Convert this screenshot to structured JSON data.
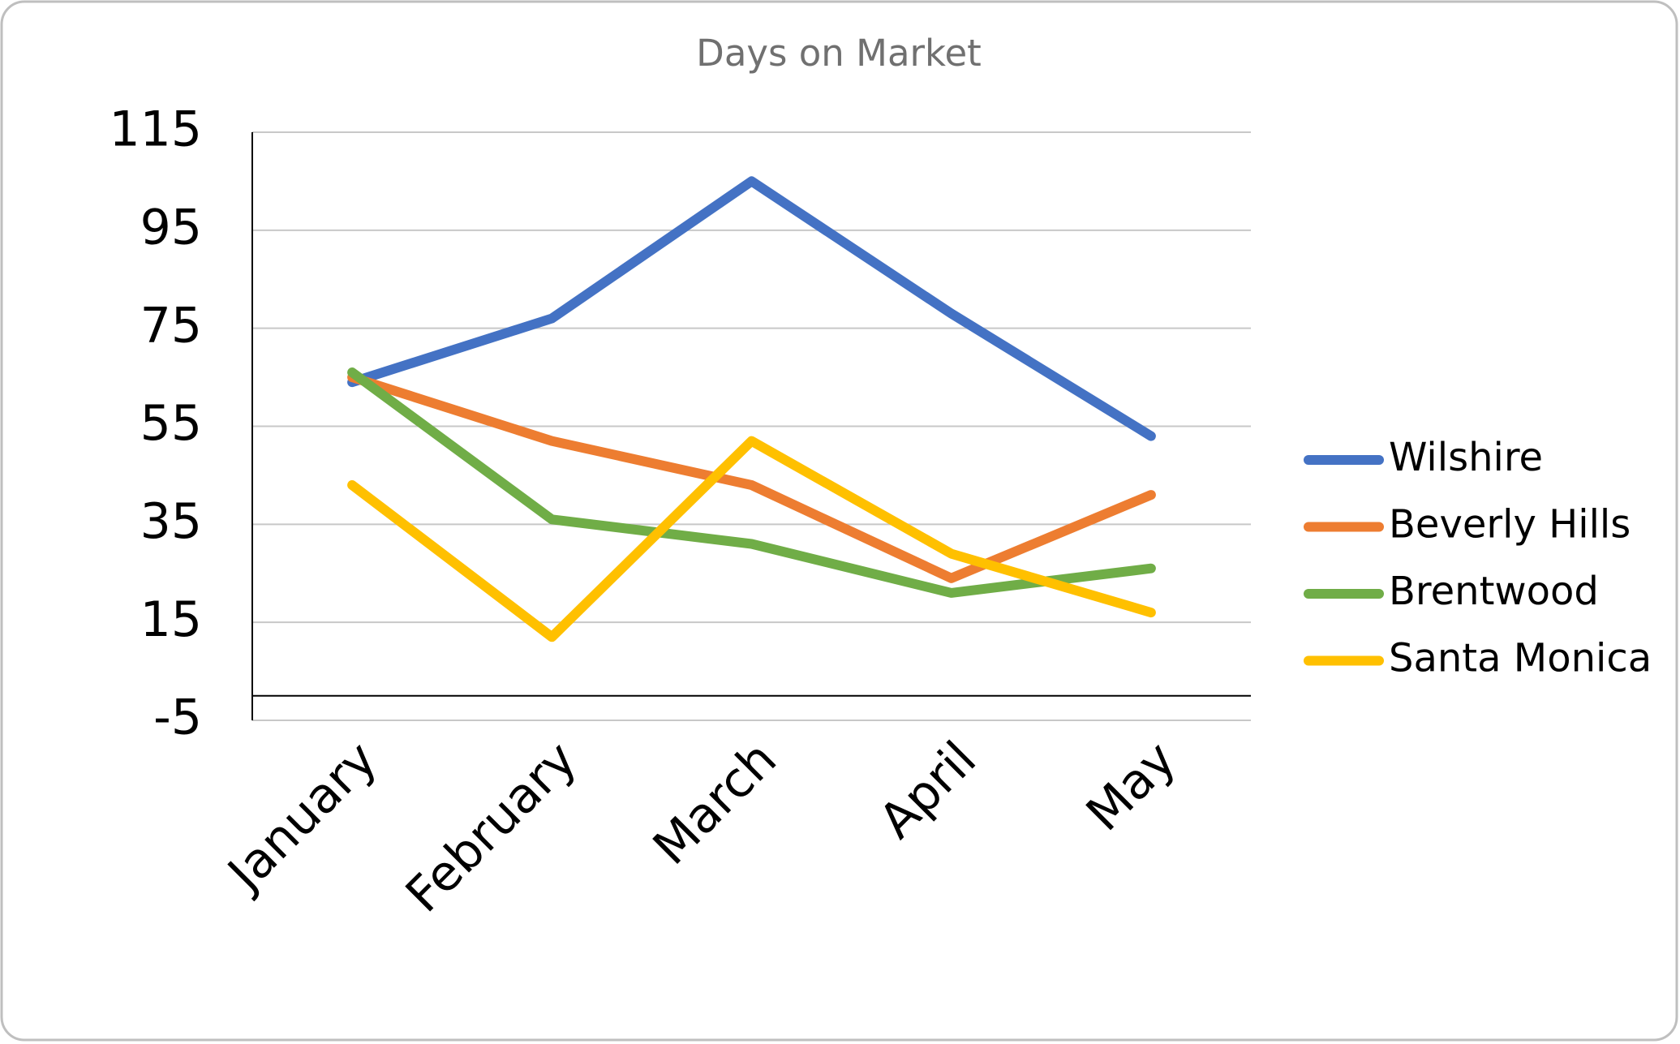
{
  "chart_data": {
    "type": "line",
    "title": "Days on Market",
    "categories": [
      "January",
      "February",
      "March",
      "April",
      "May"
    ],
    "series": [
      {
        "name": "Wilshire",
        "color": "#4472c4",
        "values": [
          64,
          77,
          105,
          78,
          53
        ]
      },
      {
        "name": "Beverly Hills",
        "color": "#ed7d31",
        "values": [
          65,
          52,
          43,
          24,
          41
        ]
      },
      {
        "name": "Brentwood",
        "color": "#70ad47",
        "values": [
          66,
          36,
          31,
          21,
          26
        ]
      },
      {
        "name": "Santa Monica",
        "color": "#ffc000",
        "values": [
          43,
          12,
          52,
          29,
          17
        ]
      }
    ],
    "ylim": [
      -5,
      115
    ],
    "yticks": [
      -5,
      15,
      35,
      55,
      75,
      95,
      115
    ],
    "grid": true,
    "legend": "right"
  }
}
